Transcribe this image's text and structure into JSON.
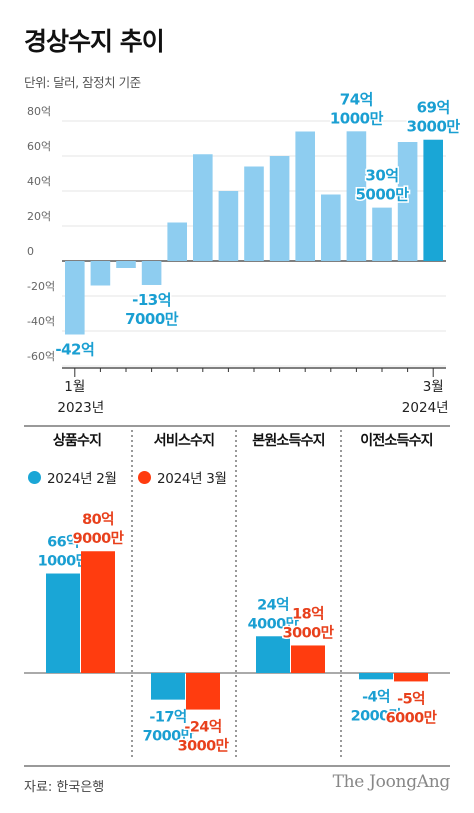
{
  "title": "경상수지 추이",
  "unit_note": "단위: 달러, 잠정치 기준",
  "source": "자료: 한국은행",
  "brand": "The JoongAng",
  "colors": {
    "bar_light": "#8ecdf0",
    "bar_highlight": "#1aa6d6",
    "label_blue": "#1a9fd2",
    "label_red": "#e8401c",
    "feb": "#1aa6d6",
    "mar": "#ff3c0f"
  },
  "chart_data": [
    {
      "type": "bar",
      "title": "",
      "xlabel": "",
      "ylabel": "",
      "ylim": [
        -60,
        80
      ],
      "yticks": [
        "80억",
        "60억",
        "40억",
        "20억",
        "0",
        "-20억",
        "-40억",
        "-60억"
      ],
      "ytick_values": [
        80,
        60,
        40,
        20,
        0,
        -20,
        -40,
        -60
      ],
      "x_start_label": "1월",
      "x_start_year": "2023년",
      "x_end_label": "3월",
      "x_end_year": "2024년",
      "values": [
        -42,
        -14,
        -4,
        -13.7,
        22,
        61,
        40,
        54,
        60,
        74,
        38,
        74.1,
        30.5,
        68,
        69.3
      ],
      "highlight_index": 14,
      "annotations": [
        {
          "index": 0,
          "lines": [
            "-42억"
          ]
        },
        {
          "index": 3,
          "lines": [
            "-13억",
            "7000만"
          ]
        },
        {
          "index": 11,
          "lines": [
            "74억",
            "1000만"
          ]
        },
        {
          "index": 12,
          "lines": [
            "30억",
            "5000만"
          ]
        },
        {
          "index": 14,
          "lines": [
            "69억",
            "3000만"
          ]
        }
      ]
    },
    {
      "type": "bar",
      "title": "",
      "categories": [
        "상품수지",
        "서비스수지",
        "본원소득수지",
        "이전소득수지"
      ],
      "series": [
        {
          "name": "2024년 2월",
          "values": [
            66.1,
            -17.7,
            24.4,
            -4.2
          ],
          "labels": [
            [
              "66억",
              "1000만"
            ],
            [
              "-17억",
              "7000만"
            ],
            [
              "24억",
              "4000만"
            ],
            [
              "-4억",
              "2000만"
            ]
          ]
        },
        {
          "name": "2024년 3월",
          "values": [
            80.9,
            -24.3,
            18.3,
            -5.6
          ],
          "labels": [
            [
              "80억",
              "9000만"
            ],
            [
              "-24억",
              "3000만"
            ],
            [
              "18억",
              "3000만"
            ],
            [
              "-5억",
              "6000만"
            ]
          ]
        }
      ]
    }
  ]
}
